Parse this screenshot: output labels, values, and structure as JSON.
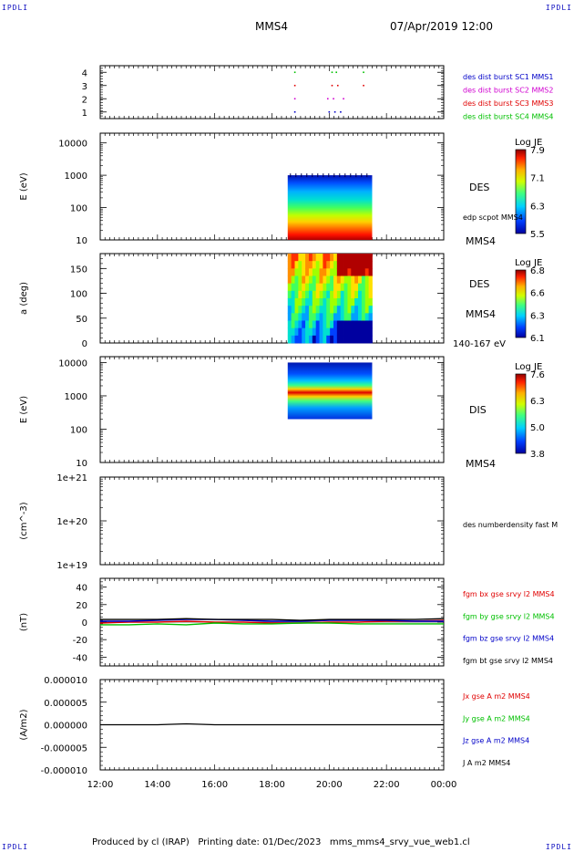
{
  "header": {
    "corner_tl": "IPDLI",
    "corner_tr": "IPDLI",
    "corner_bl": "IPDLI",
    "corner_br": "IPDLI",
    "spacecraft": "MMS4",
    "datetime": "07/Apr/2019 12:00"
  },
  "footer": {
    "text": "Produced by cl (IRAP)   Printing date: 01/Dec/2023   mms_mms4_srvy_vue_web1.cl"
  },
  "x_axis": {
    "ticks": [
      "12:00",
      "14:00",
      "16:00",
      "18:00",
      "20:00",
      "22:00",
      "00:00"
    ],
    "range_hours": [
      12,
      24
    ]
  },
  "colors": {
    "blue": "#0000c8",
    "magenta": "#d000d0",
    "red": "#e00000",
    "green": "#00c000",
    "black": "#000000"
  },
  "chart_data": [
    {
      "type": "scatter",
      "panel": "burst",
      "ylim": [
        0.5,
        4.5
      ],
      "yticks": [
        "1",
        "2",
        "3",
        "4"
      ],
      "legend": [
        {
          "label": "des dist burst SC1 MMS1",
          "color": "#0000c8"
        },
        {
          "label": "des dist burst SC2 MMS2",
          "color": "#d000d0"
        },
        {
          "label": "des dist burst SC3 MMS3",
          "color": "#e00000"
        },
        {
          "label": "des dist burst SC4 MMS4",
          "color": "#00c000"
        }
      ],
      "series": [
        {
          "name": "des dist burst SC1 MMS1",
          "y": 1,
          "x": [
            18.8,
            20.0,
            20.2,
            20.4
          ]
        },
        {
          "name": "des dist burst SC2 MMS2",
          "y": 2,
          "x": [
            18.8,
            19.95,
            20.15,
            20.5
          ]
        },
        {
          "name": "des dist burst SC3 MMS3",
          "y": 3,
          "x": [
            18.8,
            20.1,
            20.3,
            21.2
          ]
        },
        {
          "name": "des dist burst SC4 MMS4",
          "y": 4,
          "x": [
            18.8,
            20.1,
            20.25,
            21.2
          ]
        }
      ]
    },
    {
      "type": "heatmap",
      "panel": "des_energy",
      "ylabel": "E (eV)",
      "ylog": true,
      "ylim": [
        10,
        20000
      ],
      "yticks": [
        "10",
        "100",
        "1000",
        "10000"
      ],
      "x_extent": [
        18.55,
        21.5
      ],
      "y_extent": [
        10,
        1000
      ],
      "colorbar": {
        "title": "Log JE",
        "min": 5.5,
        "max": 8.0,
        "ticks": [
          "7.9",
          "7.1",
          "6.3",
          "5.5"
        ]
      },
      "side_labels": [
        "DES",
        "edp scpot MMS4",
        "MMS4"
      ]
    },
    {
      "type": "heatmap",
      "panel": "des_pitch",
      "ylabel": "a (deg)",
      "ylim": [
        0,
        180
      ],
      "yticks": [
        "0",
        "50",
        "100",
        "150"
      ],
      "x_extent": [
        18.55,
        21.5
      ],
      "colorbar": {
        "title": "Log JE",
        "min": 6.1,
        "max": 6.9,
        "ticks": [
          "6.8",
          "6.6",
          "6.3",
          "6.1"
        ]
      },
      "side_labels": [
        "DES",
        "MMS4",
        "140-167 eV"
      ]
    },
    {
      "type": "heatmap",
      "panel": "dis_energy",
      "ylabel": "E (eV)",
      "ylog": true,
      "ylim": [
        10,
        15000
      ],
      "yticks": [
        "10",
        "100",
        "1000",
        "10000"
      ],
      "x_extent": [
        18.55,
        21.5
      ],
      "y_extent": [
        200,
        10000
      ],
      "colorbar": {
        "title": "Log JE",
        "min": 3.8,
        "max": 7.7,
        "ticks": [
          "7.6",
          "6.3",
          "5.0",
          "3.8"
        ]
      },
      "side_labels": [
        "DIS",
        "MMS4"
      ]
    },
    {
      "type": "line",
      "panel": "density",
      "ylabel": "(cm^-3)",
      "ylog": true,
      "ylim": [
        1e+19,
        1e+21
      ],
      "yticks": [
        "1e+19",
        "1e+20",
        "1e+21"
      ],
      "legend": [
        {
          "label": "des numberdensity fast M",
          "color": "#000000"
        }
      ],
      "series": []
    },
    {
      "type": "line",
      "panel": "fgm",
      "ylabel": "(nT)",
      "ylim": [
        -50,
        50
      ],
      "yticks": [
        "-40",
        "-20",
        "0",
        "20",
        "40"
      ],
      "legend": [
        {
          "label": "fgm bx gse srvy l2 MMS4",
          "color": "#e00000"
        },
        {
          "label": "fgm by gse srvy l2 MMS4",
          "color": "#00c000"
        },
        {
          "label": "fgm bz gse srvy l2 MMS4",
          "color": "#0000c8"
        },
        {
          "label": "fgm bt gse srvy l2 MMS4",
          "color": "#000000"
        }
      ],
      "series": [
        {
          "name": "fgm bx gse srvy l2 MMS4",
          "x": [
            12,
            13,
            14,
            15,
            16,
            17,
            18,
            19,
            20,
            21,
            22,
            23,
            24
          ],
          "values": [
            -1,
            0,
            0,
            1,
            0,
            0,
            -1,
            -1,
            0,
            0,
            1,
            1,
            2
          ]
        },
        {
          "name": "fgm by gse srvy l2 MMS4",
          "x": [
            12,
            13,
            14,
            15,
            16,
            17,
            18,
            19,
            20,
            21,
            22,
            23,
            24
          ],
          "values": [
            -3,
            -3,
            -2,
            -3,
            -1,
            -2,
            -2,
            -1,
            -1,
            -2,
            -2,
            -2,
            -2
          ]
        },
        {
          "name": "fgm bz gse srvy l2 MMS4",
          "x": [
            12,
            13,
            14,
            15,
            16,
            17,
            18,
            19,
            20,
            21,
            22,
            23,
            24
          ],
          "values": [
            1,
            1,
            2,
            3,
            3,
            2,
            1,
            1,
            2,
            2,
            2,
            1,
            1
          ]
        },
        {
          "name": "fgm bt gse srvy l2 MMS4",
          "x": [
            12,
            13,
            14,
            15,
            16,
            17,
            18,
            19,
            20,
            21,
            22,
            23,
            24
          ],
          "values": [
            3,
            3,
            3,
            4,
            3,
            3,
            3,
            2,
            3,
            3,
            3,
            3,
            4
          ]
        }
      ]
    },
    {
      "type": "line",
      "panel": "current",
      "ylabel": "(A/m2)",
      "ylim": [
        -1e-05,
        1e-05
      ],
      "yticks": [
        "-0.000010",
        "-0.000005",
        "0.000000",
        "0.000005",
        "0.000010"
      ],
      "legend": [
        {
          "label": "Jx gse A m2 MMS4",
          "color": "#e00000"
        },
        {
          "label": "Jy gse A m2 MMS4",
          "color": "#00c000"
        },
        {
          "label": "Jz gse A m2 MMS4",
          "color": "#0000c8"
        },
        {
          "label": "J A m2 MMS4",
          "color": "#000000"
        }
      ],
      "series": [
        {
          "name": "J A m2 MMS4",
          "x": [
            12,
            14,
            15,
            16,
            18,
            20,
            22,
            24
          ],
          "values": [
            0,
            0,
            2e-07,
            0,
            0,
            0,
            0,
            0
          ]
        }
      ]
    }
  ]
}
